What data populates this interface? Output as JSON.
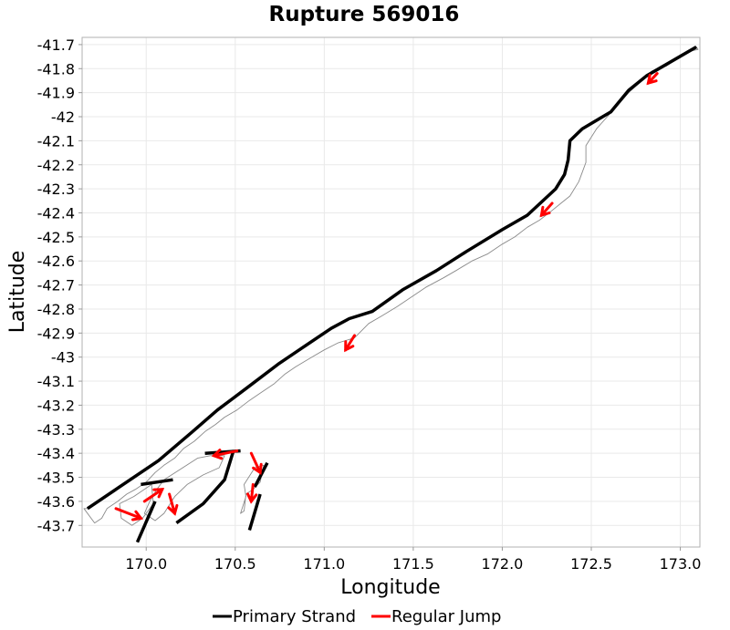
{
  "chart_data": {
    "type": "line",
    "title": "Rupture 569016",
    "xlabel": "Longitude",
    "ylabel": "Latitude",
    "xlim": [
      169.64,
      173.11
    ],
    "ylim": [
      -43.79,
      -41.67
    ],
    "grid": true,
    "legend_placement": "bottom",
    "x_ticks": [
      170.0,
      170.5,
      171.0,
      171.5,
      172.0,
      172.5,
      173.0
    ],
    "x_tick_labels": [
      "170.0",
      "170.5",
      "171.0",
      "171.5",
      "172.0",
      "172.5",
      "173.0"
    ],
    "y_ticks": [
      -41.7,
      -41.8,
      -41.9,
      -42.0,
      -42.1,
      -42.2,
      -42.3,
      -42.4,
      -42.5,
      -42.6,
      -42.7,
      -42.8,
      -42.9,
      -43.0,
      -43.1,
      -43.2,
      -43.3,
      -43.4,
      -43.5,
      -43.6,
      -43.7
    ],
    "y_tick_labels": [
      "-41.7",
      "-41.8",
      "-41.9",
      "-42",
      "-42.1",
      "-42.2",
      "-42.3",
      "-42.4",
      "-42.5",
      "-42.6",
      "-42.7",
      "-42.8",
      "-42.9",
      "-43",
      "-43.1",
      "-43.2",
      "-43.3",
      "-43.4",
      "-43.5",
      "-43.6",
      "-43.7"
    ],
    "series": [
      {
        "name": "Primary Strand",
        "color": "#000000"
      },
      {
        "name": "Regular Jump",
        "color": "#ff0000"
      }
    ],
    "primary_strand": [
      [
        [
          169.67,
          -43.63
        ],
        [
          169.83,
          -43.55
        ],
        [
          170.07,
          -43.43
        ],
        [
          170.26,
          -43.31
        ],
        [
          170.4,
          -43.22
        ],
        [
          170.58,
          -43.12
        ],
        [
          170.74,
          -43.03
        ],
        [
          170.88,
          -42.96
        ],
        [
          171.04,
          -42.88
        ],
        [
          171.14,
          -42.84
        ],
        [
          171.27,
          -42.81
        ],
        [
          171.44,
          -42.72
        ],
        [
          171.63,
          -42.64
        ],
        [
          171.8,
          -42.56
        ],
        [
          172.0,
          -42.47
        ],
        [
          172.14,
          -42.41
        ],
        [
          172.3,
          -42.3
        ],
        [
          172.35,
          -42.24
        ],
        [
          172.37,
          -42.18
        ],
        [
          172.38,
          -42.1
        ],
        [
          172.45,
          -42.05
        ],
        [
          172.61,
          -41.98
        ],
        [
          172.71,
          -41.89
        ],
        [
          172.81,
          -41.83
        ],
        [
          173.09,
          -41.71
        ]
      ],
      [
        [
          169.97,
          -43.53
        ],
        [
          170.15,
          -43.51
        ]
      ],
      [
        [
          170.33,
          -43.4
        ],
        [
          170.53,
          -43.39
        ]
      ],
      [
        [
          170.49,
          -43.39
        ],
        [
          170.44,
          -43.51
        ],
        [
          170.32,
          -43.61
        ],
        [
          170.17,
          -43.69
        ]
      ],
      [
        [
          170.05,
          -43.6
        ],
        [
          169.95,
          -43.77
        ]
      ],
      [
        [
          170.61,
          -43.54
        ],
        [
          170.68,
          -43.44
        ]
      ],
      [
        [
          170.58,
          -43.72
        ],
        [
          170.64,
          -43.57
        ]
      ]
    ],
    "fault_sections": [
      [
        [
          169.65,
          -43.63
        ],
        [
          169.71,
          -43.69
        ],
        [
          169.75,
          -43.67
        ],
        [
          169.78,
          -43.63
        ],
        [
          169.84,
          -43.6
        ],
        [
          169.89,
          -43.57
        ],
        [
          169.94,
          -43.55
        ],
        [
          170.0,
          -43.52
        ],
        [
          170.05,
          -43.48
        ],
        [
          170.1,
          -43.45
        ],
        [
          170.16,
          -43.42
        ],
        [
          170.21,
          -43.38
        ],
        [
          170.27,
          -43.35
        ],
        [
          170.33,
          -43.31
        ],
        [
          170.39,
          -43.28
        ],
        [
          170.44,
          -43.25
        ],
        [
          170.51,
          -43.22
        ],
        [
          170.58,
          -43.18
        ],
        [
          170.64,
          -43.15
        ],
        [
          170.72,
          -43.11
        ],
        [
          170.78,
          -43.07
        ],
        [
          170.84,
          -43.04
        ],
        [
          170.93,
          -43.0
        ],
        [
          171.0,
          -42.97
        ],
        [
          171.08,
          -42.94
        ],
        [
          171.17,
          -42.92
        ],
        [
          171.25,
          -42.86
        ],
        [
          171.32,
          -42.83
        ],
        [
          171.41,
          -42.79
        ],
        [
          171.49,
          -42.75
        ],
        [
          171.57,
          -42.71
        ],
        [
          171.67,
          -42.67
        ],
        [
          171.74,
          -42.64
        ],
        [
          171.83,
          -42.6
        ],
        [
          171.92,
          -42.57
        ],
        [
          172.0,
          -42.53
        ],
        [
          172.07,
          -42.5
        ],
        [
          172.14,
          -42.46
        ],
        [
          172.21,
          -42.43
        ],
        [
          172.28,
          -42.39
        ],
        [
          172.33,
          -42.36
        ],
        [
          172.38,
          -42.33
        ],
        [
          172.43,
          -42.27
        ],
        [
          172.45,
          -42.23
        ],
        [
          172.47,
          -42.19
        ],
        [
          172.47,
          -42.12
        ],
        [
          172.53,
          -42.05
        ],
        [
          172.59,
          -42.0
        ],
        [
          172.65,
          -41.95
        ],
        [
          172.71,
          -41.9
        ],
        [
          172.77,
          -41.86
        ],
        [
          172.84,
          -41.81
        ],
        [
          172.92,
          -41.79
        ],
        [
          172.98,
          -41.76
        ],
        [
          173.04,
          -41.73
        ],
        [
          173.1,
          -41.72
        ],
        [
          173.09,
          -41.71
        ],
        [
          172.81,
          -41.83
        ],
        [
          172.71,
          -41.89
        ],
        [
          172.61,
          -41.98
        ],
        [
          172.45,
          -42.05
        ],
        [
          172.38,
          -42.1
        ],
        [
          172.37,
          -42.18
        ],
        [
          172.35,
          -42.24
        ],
        [
          172.3,
          -42.3
        ],
        [
          172.14,
          -42.41
        ],
        [
          172.0,
          -42.47
        ],
        [
          171.8,
          -42.56
        ],
        [
          171.63,
          -42.64
        ],
        [
          171.44,
          -42.72
        ],
        [
          171.27,
          -42.81
        ],
        [
          171.14,
          -42.84
        ],
        [
          171.04,
          -42.88
        ],
        [
          170.88,
          -42.96
        ],
        [
          170.74,
          -43.03
        ],
        [
          170.58,
          -43.12
        ],
        [
          170.4,
          -43.22
        ],
        [
          170.26,
          -43.31
        ],
        [
          170.07,
          -43.43
        ],
        [
          169.83,
          -43.55
        ],
        [
          169.67,
          -43.63
        ]
      ],
      [
        [
          170.1,
          -43.51
        ],
        [
          170.29,
          -43.42
        ],
        [
          170.36,
          -43.41
        ],
        [
          170.44,
          -43.41
        ],
        [
          170.41,
          -43.46
        ],
        [
          170.32,
          -43.49
        ],
        [
          170.23,
          -43.53
        ],
        [
          170.16,
          -43.58
        ],
        [
          170.1,
          -43.65
        ],
        [
          170.05,
          -43.68
        ],
        [
          169.99,
          -43.65
        ],
        [
          170.02,
          -43.6
        ],
        [
          170.06,
          -43.55
        ]
      ],
      [
        [
          169.85,
          -43.61
        ],
        [
          169.93,
          -43.58
        ],
        [
          170.03,
          -43.53
        ],
        [
          170.04,
          -43.61
        ],
        [
          169.98,
          -43.67
        ],
        [
          169.92,
          -43.7
        ],
        [
          169.86,
          -43.67
        ]
      ],
      [
        [
          170.55,
          -43.53
        ],
        [
          170.61,
          -43.46
        ],
        [
          170.66,
          -43.45
        ],
        [
          170.64,
          -43.52
        ],
        [
          170.6,
          -43.55
        ],
        [
          170.56,
          -43.57
        ],
        [
          170.55,
          -43.64
        ],
        [
          170.53,
          -43.65
        ],
        [
          170.56,
          -43.58
        ]
      ]
    ],
    "jumps": [
      [
        [
          172.87,
          -41.82
        ],
        [
          172.82,
          -41.86
        ]
      ],
      [
        [
          172.28,
          -42.36
        ],
        [
          172.22,
          -42.41
        ]
      ],
      [
        [
          171.17,
          -42.91
        ],
        [
          171.12,
          -42.97
        ]
      ],
      [
        [
          169.83,
          -43.63
        ],
        [
          169.97,
          -43.67
        ]
      ],
      [
        [
          169.99,
          -43.6
        ],
        [
          170.09,
          -43.55
        ]
      ],
      [
        [
          170.13,
          -43.57
        ],
        [
          170.16,
          -43.65
        ]
      ],
      [
        [
          170.51,
          -43.39
        ],
        [
          170.38,
          -43.41
        ]
      ],
      [
        [
          170.59,
          -43.4
        ],
        [
          170.64,
          -43.48
        ]
      ],
      [
        [
          170.6,
          -43.53
        ],
        [
          170.59,
          -43.6
        ]
      ]
    ]
  }
}
